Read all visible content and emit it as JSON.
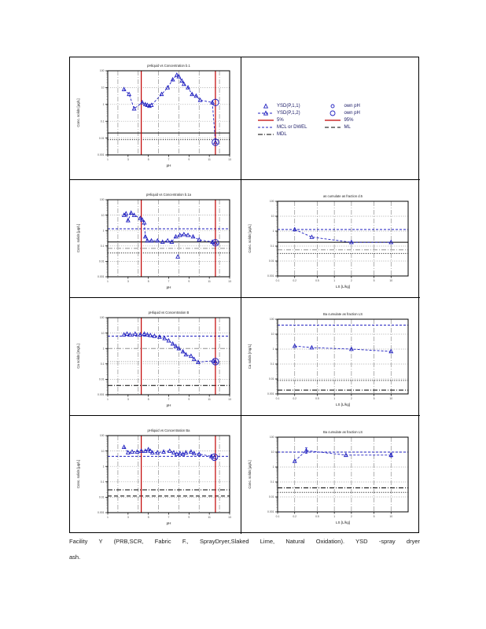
{
  "colors": {
    "series_blue": "#2020c0",
    "percentile_red": "#c00000",
    "ref_black": "#000000",
    "grid_gray": "#909090",
    "tick_text": "#444444",
    "legend_text": "#1a1a66"
  },
  "legend": {
    "col1": [
      {
        "swatch": "triangle-blue",
        "label": "YSD(P,1,1)"
      },
      {
        "swatch": "dashline-triangle-blue",
        "label": "YSD(P,1,2)"
      },
      {
        "swatch": "solid-red",
        "label": "5%"
      },
      {
        "swatch": "dash-blue",
        "label": "MCL or DWEL"
      },
      {
        "swatch": "dashdot-black",
        "label": "MDL"
      }
    ],
    "col2": [
      {
        "swatch": "circle-blue-sm",
        "label": "own pH"
      },
      {
        "swatch": "circle-blue",
        "label": "own pH"
      },
      {
        "swatch": "solid-red",
        "label": "95%"
      },
      {
        "swatch": "dash-black",
        "label": "ML"
      }
    ]
  },
  "caption": {
    "line1": "Facility Y (PRB,SCR, Fabric F., SprayDryer,Slaked Lime, Natural Oxidation). YSD -spray dryer",
    "line2": "ash."
  },
  "chart_data": [
    {
      "id": "r1-left",
      "row": 1,
      "col": "left",
      "type": "scatter",
      "title": "pHliquid vs Concentration b.1",
      "xlabel": "pH",
      "ylabel": "Conc. solids  [µg/L]",
      "xscale": "linear",
      "xlim": [
        1,
        13
      ],
      "ylog": [
        -3,
        2
      ],
      "xgrid": [
        2,
        4,
        6,
        8,
        10,
        12
      ],
      "xticks": [
        1,
        3,
        5,
        7,
        9,
        11,
        13
      ],
      "ygrid": [
        0.01,
        0.1,
        1,
        10
      ],
      "yticks": [
        [
          2,
          "100"
        ],
        [
          1,
          "10"
        ],
        [
          0,
          "1"
        ],
        [
          -1,
          "0.1"
        ],
        [
          -2,
          "0.01"
        ],
        [
          -3,
          "0.001"
        ]
      ],
      "hlines": [
        {
          "y": 0.02,
          "color": "black",
          "dash": "solid"
        },
        {
          "y": 0.008,
          "color": "black",
          "dash": "dot"
        }
      ],
      "vlines": [
        {
          "x": 4.3,
          "color": "red",
          "dash": "solid"
        },
        {
          "x": 11.6,
          "color": "red",
          "dash": "solid"
        }
      ],
      "series": [
        {
          "name": "YSD(P,1,2)",
          "marker": "triangle",
          "line": "dash",
          "points": [
            [
              2.6,
              7.9
            ],
            [
              3.1,
              4.0
            ],
            [
              3.6,
              0.56
            ],
            [
              4.4,
              1.3
            ],
            [
              4.7,
              1.0
            ],
            [
              4.9,
              0.9
            ],
            [
              5.1,
              0.8
            ],
            [
              5.3,
              0.9
            ],
            [
              6.3,
              4.0
            ],
            [
              6.9,
              10
            ],
            [
              7.4,
              30
            ],
            [
              7.8,
              56
            ],
            [
              8.0,
              45
            ],
            [
              8.3,
              25
            ],
            [
              8.5,
              16
            ],
            [
              8.9,
              10
            ],
            [
              9.3,
              4.0
            ],
            [
              9.7,
              3.2
            ],
            [
              10.1,
              1.8
            ],
            [
              11.3,
              1.3
            ],
            [
              11.6,
              0.0056
            ]
          ]
        }
      ],
      "own_ph_circles": [
        [
          11.6,
          1.3
        ],
        [
          11.6,
          0.0056
        ]
      ],
      "errorbars": []
    },
    {
      "id": "r2-left",
      "row": 2,
      "col": "left",
      "type": "scatter",
      "title": "pHliquid vs Concentration b.1a",
      "xlabel": "pH",
      "ylabel": "Conc. solids  [µg/L]",
      "xscale": "linear",
      "xlim": [
        1,
        13
      ],
      "ylog": [
        -3,
        2
      ],
      "xgrid": [
        2,
        4,
        6,
        8,
        10,
        12
      ],
      "xticks": [
        1,
        3,
        5,
        7,
        9,
        11,
        13
      ],
      "ygrid": [
        0.01,
        0.1,
        1,
        10
      ],
      "yticks": [
        [
          2,
          "100"
        ],
        [
          1,
          "10"
        ],
        [
          0,
          "1"
        ],
        [
          -1,
          "0.1"
        ],
        [
          -2,
          "0.01"
        ],
        [
          -3,
          "0.001"
        ]
      ],
      "hlines": [
        {
          "y": 1.3,
          "color": "blue",
          "dash": "dash"
        },
        {
          "y": 0.18,
          "color": "black",
          "dash": "solid"
        },
        {
          "y": 0.07,
          "color": "gray",
          "dash": "dashdot"
        },
        {
          "y": 0.035,
          "color": "black",
          "dash": "dot"
        }
      ],
      "vlines": [
        {
          "x": 4.3,
          "color": "red",
          "dash": "solid"
        },
        {
          "x": 11.6,
          "color": "red",
          "dash": "solid"
        }
      ],
      "series": [
        {
          "name": "YSD(P,1,2)",
          "marker": "triangle",
          "line": "dash",
          "points": [
            [
              2.6,
              10
            ],
            [
              2.8,
              12.6
            ],
            [
              3.0,
              4.5
            ],
            [
              3.3,
              14
            ],
            [
              3.6,
              10
            ],
            [
              4.2,
              6.3
            ],
            [
              4.4,
              5.0
            ],
            [
              4.6,
              3.2
            ],
            [
              4.7,
              0.4
            ],
            [
              4.9,
              0.22
            ],
            [
              5.3,
              0.22
            ],
            [
              5.9,
              0.22
            ],
            [
              6.4,
              0.18
            ],
            [
              6.9,
              0.22
            ],
            [
              7.3,
              0.18
            ],
            [
              7.7,
              0.4
            ],
            [
              8.1,
              0.5
            ],
            [
              8.5,
              0.56
            ],
            [
              8.9,
              0.5
            ],
            [
              9.4,
              0.4
            ],
            [
              10.0,
              0.25
            ],
            [
              11.3,
              0.18
            ],
            [
              11.6,
              0.16
            ]
          ]
        },
        {
          "name": "YSD(P,1,1)",
          "marker": "triangle",
          "line": "none",
          "points": [
            [
              7.9,
              0.02
            ]
          ]
        }
      ],
      "own_ph_circles": [
        [
          11.6,
          0.16
        ]
      ],
      "errorbars": []
    },
    {
      "id": "r2-right",
      "row": 2,
      "col": "right",
      "type": "scatter",
      "title": "as cumulate      as fraction      d.5",
      "xlabel": "LS    [L/kg]",
      "ylabel": "Conc. solids  [µg/L]",
      "xscale": "log",
      "xlim": [
        0.1,
        20
      ],
      "ylog": [
        -3,
        2
      ],
      "xgrid": [
        0.2,
        0.5,
        1,
        2,
        5,
        10
      ],
      "xticks": [
        0.1,
        0.2,
        0.5,
        1,
        2,
        5,
        10
      ],
      "ygrid": [
        0.01,
        0.1,
        1,
        10
      ],
      "yticks": [
        [
          2,
          "100"
        ],
        [
          1,
          "10"
        ],
        [
          0,
          "1"
        ],
        [
          -1,
          "0.1"
        ],
        [
          -2,
          "0.01"
        ],
        [
          -3,
          "0.001"
        ]
      ],
      "hlines": [
        {
          "y": 1.3,
          "color": "blue",
          "dash": "dash"
        },
        {
          "y": 0.18,
          "color": "black",
          "dash": "solid"
        },
        {
          "y": 0.056,
          "color": "gray",
          "dash": "dashdot"
        },
        {
          "y": 0.032,
          "color": "black",
          "dash": "dot"
        }
      ],
      "vlines": [],
      "series": [
        {
          "name": "cumulate",
          "marker": "triangle",
          "line": "dash",
          "points": [
            [
              0.2,
              1.3
            ],
            [
              0.4,
              0.4
            ],
            [
              2.0,
              0.18
            ],
            [
              10.0,
              0.18
            ]
          ]
        }
      ],
      "own_ph_circles": [],
      "errorbars": []
    },
    {
      "id": "r3-left",
      "row": 3,
      "col": "left",
      "type": "scatter",
      "title": "pHliquid vs Concentration B",
      "xlabel": "pH",
      "ylabel": "Ca solids  [mg/L]",
      "xscale": "linear",
      "xlim": [
        1,
        13
      ],
      "ylog": [
        -3,
        2
      ],
      "xgrid": [
        2,
        4,
        6,
        8,
        10,
        12
      ],
      "xticks": [
        1,
        3,
        5,
        7,
        9,
        11,
        13
      ],
      "ygrid": [
        0.01,
        0.1,
        10
      ],
      "yticks": [
        [
          2,
          "100"
        ],
        [
          1,
          "10"
        ],
        [
          0,
          "1"
        ],
        [
          -1,
          "0.1"
        ],
        [
          -2,
          "0.01"
        ],
        [
          -3,
          "0.001"
        ]
      ],
      "hlines": [
        {
          "y": 6.3,
          "color": "blue",
          "dash": "dash"
        },
        {
          "y": 1.0,
          "color": "gray",
          "dash": "dashdot"
        },
        {
          "y": 0.14,
          "color": "gray",
          "dash": "dot"
        },
        {
          "y": 0.004,
          "color": "black",
          "dash": "dashdot"
        }
      ],
      "vlines": [
        {
          "x": 4.3,
          "color": "red",
          "dash": "solid"
        },
        {
          "x": 11.6,
          "color": "red",
          "dash": "solid"
        }
      ],
      "series": [
        {
          "name": "YSD(P,1,2)",
          "marker": "triangle",
          "line": "dash",
          "points": [
            [
              2.6,
              7.9
            ],
            [
              2.9,
              8.9
            ],
            [
              3.2,
              7.9
            ],
            [
              3.7,
              8.9
            ],
            [
              4.2,
              7.9
            ],
            [
              4.6,
              8.9
            ],
            [
              4.9,
              7.9
            ],
            [
              5.2,
              7.1
            ],
            [
              5.6,
              6.3
            ],
            [
              6.1,
              5.6
            ],
            [
              6.6,
              4.5
            ],
            [
              7.0,
              3.2
            ],
            [
              7.4,
              2.0
            ],
            [
              7.7,
              1.4
            ],
            [
              8.0,
              1.0
            ],
            [
              8.4,
              0.63
            ],
            [
              8.7,
              0.4
            ],
            [
              9.2,
              0.32
            ],
            [
              9.5,
              0.2
            ],
            [
              9.9,
              0.13
            ],
            [
              11.4,
              0.16
            ],
            [
              11.6,
              0.14
            ]
          ]
        }
      ],
      "own_ph_circles": [
        [
          11.6,
          0.14
        ]
      ],
      "errorbars": []
    },
    {
      "id": "r3-right",
      "row": 3,
      "col": "right",
      "type": "scatter",
      "title": "Ba cumulate      as fraction      LS",
      "xlabel": "LS    [L/kg]",
      "ylabel": "Ca solids  [mg/L]",
      "xscale": "log",
      "xlim": [
        0.1,
        20
      ],
      "ylog": [
        -3,
        2
      ],
      "xgrid": [
        0.2,
        0.5,
        1,
        2,
        5,
        10
      ],
      "xticks": [
        0.1,
        0.2,
        0.5,
        1,
        2,
        5,
        10
      ],
      "ygrid": [
        0.01,
        0.1,
        1,
        10
      ],
      "yticks": [
        [
          2,
          "100"
        ],
        [
          1,
          "10"
        ],
        [
          0,
          "1"
        ],
        [
          -1,
          "0.1"
        ],
        [
          -2,
          "0.01"
        ],
        [
          -3,
          "0.001"
        ]
      ],
      "hlines": [
        {
          "y": 40,
          "color": "blue",
          "dash": "dash"
        },
        {
          "y": 0.008,
          "color": "black",
          "dash": "dot"
        },
        {
          "y": 0.0018,
          "color": "black",
          "dash": "dashdot"
        }
      ],
      "vlines": [],
      "series": [
        {
          "name": "cumulate",
          "marker": "triangle",
          "line": "dash",
          "points": [
            [
              0.2,
              1.6
            ],
            [
              0.4,
              1.26
            ],
            [
              2.0,
              1.0
            ],
            [
              10.0,
              0.7
            ]
          ]
        }
      ],
      "own_ph_circles": [],
      "errorbars": []
    },
    {
      "id": "r4-left",
      "row": 4,
      "col": "left",
      "type": "scatter",
      "title": "pHliquid vs Concentration Ba",
      "xlabel": "pH",
      "ylabel": "Conc. solids  [µg/L]",
      "xscale": "linear",
      "xlim": [
        1,
        13
      ],
      "ylog": [
        -3,
        2
      ],
      "xgrid": [
        2,
        4,
        6,
        8,
        10,
        12
      ],
      "xticks": [
        1,
        3,
        5,
        7,
        9,
        11,
        13
      ],
      "ygrid": [
        0.01,
        0.1,
        1,
        10
      ],
      "yticks": [
        [
          2,
          "100"
        ],
        [
          1,
          "10"
        ],
        [
          0,
          "1"
        ],
        [
          -1,
          "0.1"
        ],
        [
          -2,
          "0.01"
        ],
        [
          -3,
          "0.001"
        ]
      ],
      "hlines": [
        {
          "y": 4.5,
          "color": "blue",
          "dash": "dash"
        },
        {
          "y": 0.03,
          "color": "black",
          "dash": "dashdot"
        },
        {
          "y": 0.012,
          "color": "black",
          "dash": "longdash"
        }
      ],
      "vlines": [
        {
          "x": 4.3,
          "color": "red",
          "dash": "solid"
        },
        {
          "x": 11.6,
          "color": "red",
          "dash": "solid"
        }
      ],
      "series": [
        {
          "name": "YSD(P,1,2)",
          "marker": "triangle",
          "line": "dash",
          "points": [
            [
              2.6,
              18
            ],
            [
              3.0,
              7.9
            ],
            [
              3.4,
              8.9
            ],
            [
              3.9,
              8.9
            ],
            [
              4.3,
              10
            ],
            [
              4.7,
              10
            ],
            [
              5.0,
              12.6
            ],
            [
              5.2,
              10
            ],
            [
              5.4,
              7.9
            ],
            [
              5.9,
              7.9
            ],
            [
              6.5,
              8.9
            ],
            [
              7.1,
              10
            ],
            [
              7.5,
              7.9
            ],
            [
              7.8,
              6.3
            ],
            [
              8.1,
              7.1
            ],
            [
              8.4,
              6.3
            ],
            [
              8.7,
              7.9
            ],
            [
              9.2,
              8.9
            ],
            [
              9.5,
              7.1
            ],
            [
              10.0,
              6.3
            ],
            [
              11.2,
              4.5
            ],
            [
              11.5,
              4.0
            ]
          ]
        }
      ],
      "own_ph_circles": [
        [
          11.5,
          4.0
        ]
      ],
      "errorbars": []
    },
    {
      "id": "r4-right",
      "row": 4,
      "col": "right",
      "type": "scatter",
      "title": "Ba cumulate      as fraction      LS",
      "xlabel": "LS    [L/kg]",
      "ylabel": "Conc. solids  [µg/L]",
      "xscale": "log",
      "xlim": [
        0.1,
        20
      ],
      "ylog": [
        -3,
        2
      ],
      "xgrid": [
        0.2,
        0.5,
        1,
        2,
        5,
        10
      ],
      "xticks": [
        0.1,
        0.2,
        0.5,
        1,
        2,
        5,
        10
      ],
      "ygrid": [
        0.01,
        0.1,
        1,
        10
      ],
      "yticks": [
        [
          2,
          "100"
        ],
        [
          1,
          "10"
        ],
        [
          0,
          "1"
        ],
        [
          -1,
          "0.1"
        ],
        [
          -2,
          "0.01"
        ],
        [
          -3,
          "0.001"
        ]
      ],
      "hlines": [
        {
          "y": 10,
          "color": "blue",
          "dash": "dash"
        },
        {
          "y": 0.04,
          "color": "black",
          "dash": "dashdot"
        },
        {
          "y": 0.02,
          "color": "black",
          "dash": "dot"
        }
      ],
      "vlines": [],
      "series": [
        {
          "name": "cumulate",
          "marker": "triangle",
          "line": "dash",
          "points": [
            [
              0.2,
              2.5
            ],
            [
              0.32,
              12.6
            ],
            [
              1.6,
              6.3
            ],
            [
              10.0,
              6.3
            ]
          ]
        }
      ],
      "own_ph_circles": [],
      "errorbars": [
        [
          0.32,
          12.6,
          0.18
        ],
        [
          10.0,
          6.3,
          0.12
        ]
      ]
    }
  ]
}
